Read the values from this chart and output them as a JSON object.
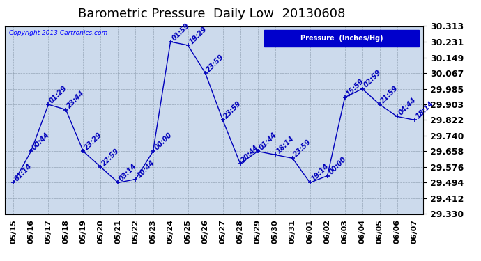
{
  "title": "Barometric Pressure  Daily Low  20130608",
  "copyright": "Copyright 2013 Cartronics.com",
  "background_color": "#ccdaec",
  "fig_background": "#ffffff",
  "line_color": "#0000bb",
  "ylim": [
    29.33,
    30.313
  ],
  "yticks": [
    29.33,
    29.412,
    29.494,
    29.576,
    29.658,
    29.74,
    29.822,
    29.903,
    29.985,
    30.067,
    30.149,
    30.231,
    30.313
  ],
  "dates": [
    "05/15",
    "05/16",
    "05/17",
    "05/18",
    "05/19",
    "05/20",
    "05/21",
    "05/22",
    "05/23",
    "05/24",
    "05/25",
    "05/26",
    "05/27",
    "05/28",
    "05/29",
    "05/30",
    "05/31",
    "06/01",
    "06/02",
    "06/03",
    "06/04",
    "06/05",
    "06/06",
    "06/07"
  ],
  "values": [
    29.494,
    29.658,
    29.903,
    29.876,
    29.658,
    29.576,
    29.494,
    29.512,
    29.658,
    30.231,
    30.213,
    30.067,
    29.822,
    29.594,
    29.658,
    29.64,
    29.622,
    29.494,
    29.53,
    29.94,
    29.985,
    29.903,
    29.84,
    29.822
  ],
  "labels": [
    "01:14",
    "00:44",
    "01:29",
    "23:44",
    "23:29",
    "22:59",
    "03:14",
    "10:44",
    "00:00",
    "01:59",
    "19:29",
    "23:59",
    "23:59",
    "20:44",
    "01:44",
    "18:14",
    "23:59",
    "19:14",
    "00:00",
    "15:59",
    "02:59",
    "21:59",
    "04:44",
    "18:14"
  ],
  "title_fontsize": 13,
  "label_fontsize": 7,
  "tick_fontsize": 8,
  "ytick_fontsize": 9,
  "legend_bg": "#0000cc",
  "legend_text": "Pressure  (Inches/Hg)"
}
